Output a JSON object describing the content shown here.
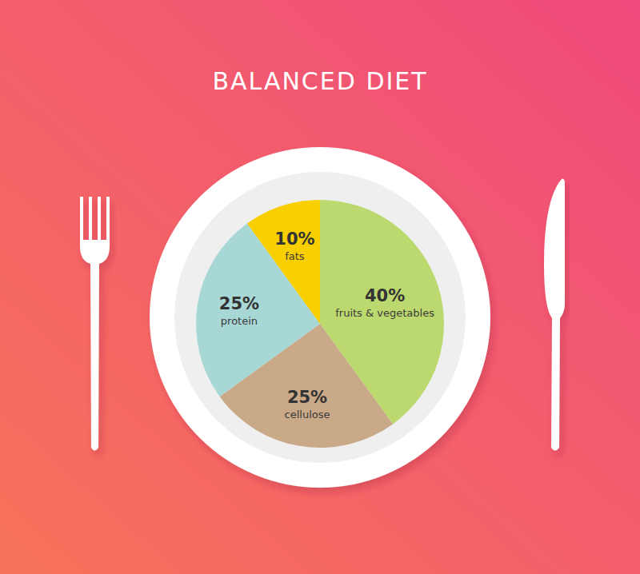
{
  "chart_data": {
    "type": "pie",
    "title": "BALANCED DIET",
    "categories": [
      "fruits & vegetables",
      "cellulose",
      "protein",
      "fats"
    ],
    "values": [
      40,
      25,
      25,
      10
    ],
    "value_labels": [
      "40%",
      "25%",
      "25%",
      "10%"
    ],
    "colors": [
      "#bcd96f",
      "#c9a987",
      "#a8d8d6",
      "#f9cf00"
    ],
    "data_labels": true
  }
}
